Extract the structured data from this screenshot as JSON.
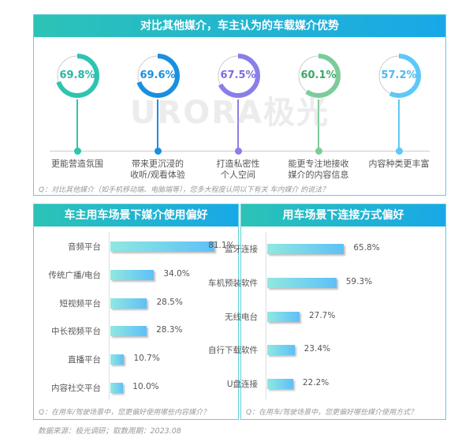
{
  "top": {
    "title": "对比其他媒介，车主认为的车载媒介优势",
    "question": "Q：对比其他媒介（如手机移动端、电脑端等），您多大程度认同以下有关 车内媒介 的说法？"
  },
  "left": {
    "title": "车主用车场景下媒介使用偏好",
    "question": "Q：在用车/驾驶场景中，您更偏好使用哪些内容媒介？"
  },
  "right": {
    "title": "用车场景下连接方式偏好",
    "question": "Q：在用车/驾驶场景中，您更偏好哪些媒介使用方式？"
  },
  "watermark": "URORA极光",
  "source": "数据来源：极光调研；取数周期：2023.08",
  "chart_data": [
    {
      "type": "pie",
      "title": "对比其他媒介，车主认为的车载媒介优势",
      "categories": [
        "更能营造氛围",
        "带来更沉浸的收听/观看体验",
        "打造私密性个人空间",
        "能更专注地接收媒介的内容信息",
        "内容种类更丰富"
      ],
      "label_lines": [
        [
          "更能营造氛围"
        ],
        [
          "带来更沉浸的",
          "收听/观看体验"
        ],
        [
          "打造私密性",
          "个人空间"
        ],
        [
          "能更专注地接收",
          "媒介的内容信息"
        ],
        [
          "内容种类更丰富"
        ]
      ],
      "values": [
        69.8,
        69.6,
        67.5,
        60.1,
        57.2
      ],
      "labels": [
        "69.8%",
        "69.6%",
        "67.5%",
        "60.1%",
        "57.2%"
      ],
      "colors": [
        "#2ec4b0",
        "#1a8fe0",
        "#8a7ee8",
        "#7ccc9a",
        "#5ec8f8"
      ],
      "text_colors": [
        "#2ab5a3",
        "#1a8fe0",
        "#7a6ee0",
        "#3aa866",
        "#4ab8f0"
      ]
    },
    {
      "type": "bar",
      "orientation": "horizontal",
      "title": "车主用车场景下媒介使用偏好",
      "categories": [
        "音频平台",
        "传统广播/电台",
        "短视频平台",
        "中长视频平台",
        "直播平台",
        "内容社交平台"
      ],
      "values": [
        81.1,
        34.0,
        28.5,
        28.3,
        10.7,
        10.0
      ],
      "labels": [
        "81.1%",
        "34.0%",
        "28.5%",
        "28.3%",
        "10.7%",
        "10.0%"
      ]
    },
    {
      "type": "bar",
      "orientation": "horizontal",
      "title": "用车场景下连接方式偏好",
      "categories": [
        "蓝牙连接",
        "车机预装软件",
        "无线电台",
        "自行下载软件",
        "U盘连接"
      ],
      "values": [
        65.8,
        59.3,
        27.7,
        23.4,
        22.2
      ],
      "labels": [
        "65.8%",
        "59.3%",
        "27.7%",
        "23.4%",
        "22.2%"
      ]
    }
  ]
}
